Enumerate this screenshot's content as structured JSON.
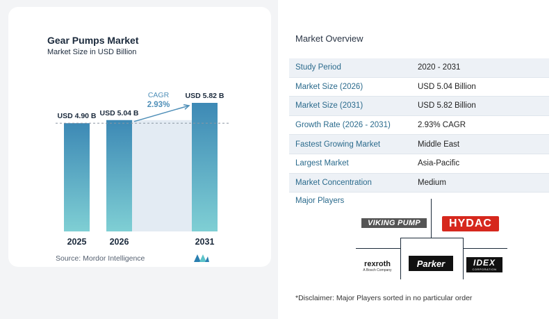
{
  "chart_data": {
    "type": "bar",
    "title": "Gear Pumps Market",
    "subtitle": "Market Size in USD Billion",
    "categories": [
      "2025",
      "2026",
      "2031"
    ],
    "values": [
      4.9,
      5.04,
      5.82
    ],
    "data_labels": [
      "USD 4.90 B",
      "USD 5.04 B",
      "USD 5.82 B"
    ],
    "annotation": {
      "label": "CAGR",
      "value": "2.93%"
    },
    "ylim": [
      0,
      5.82
    ],
    "bar_color_top": "#3d89b5",
    "bar_color_bottom": "#7fcfd4",
    "source": "Source:  Mordor Intelligence"
  },
  "overview": {
    "title": "Market Overview",
    "rows": [
      {
        "key": "Study Period",
        "value": "2020 - 2031"
      },
      {
        "key": "Market Size (2026)",
        "value": "USD 5.04 Billion"
      },
      {
        "key": "Market Size (2031)",
        "value": "USD 5.82 Billion"
      },
      {
        "key": "Growth Rate (2026 - 2031)",
        "value": "2.93% CAGR"
      },
      {
        "key": "Fastest Growing Market",
        "value": "Middle East"
      },
      {
        "key": "Largest Market",
        "value": "Asia-Pacific"
      },
      {
        "key": "Market Concentration",
        "value": "Medium"
      }
    ]
  },
  "players": {
    "title": "Major Players",
    "logos": {
      "viking": "VIKING PUMP",
      "hydac": "HYDAC",
      "rexroth": "rexroth",
      "rexroth_sub": "A Bosch Company",
      "parker": "Parker",
      "idex": "IDEX",
      "idex_sub": "CORPORATION"
    }
  },
  "disclaimer": "*Disclaimer: Major Players sorted in no particular order"
}
